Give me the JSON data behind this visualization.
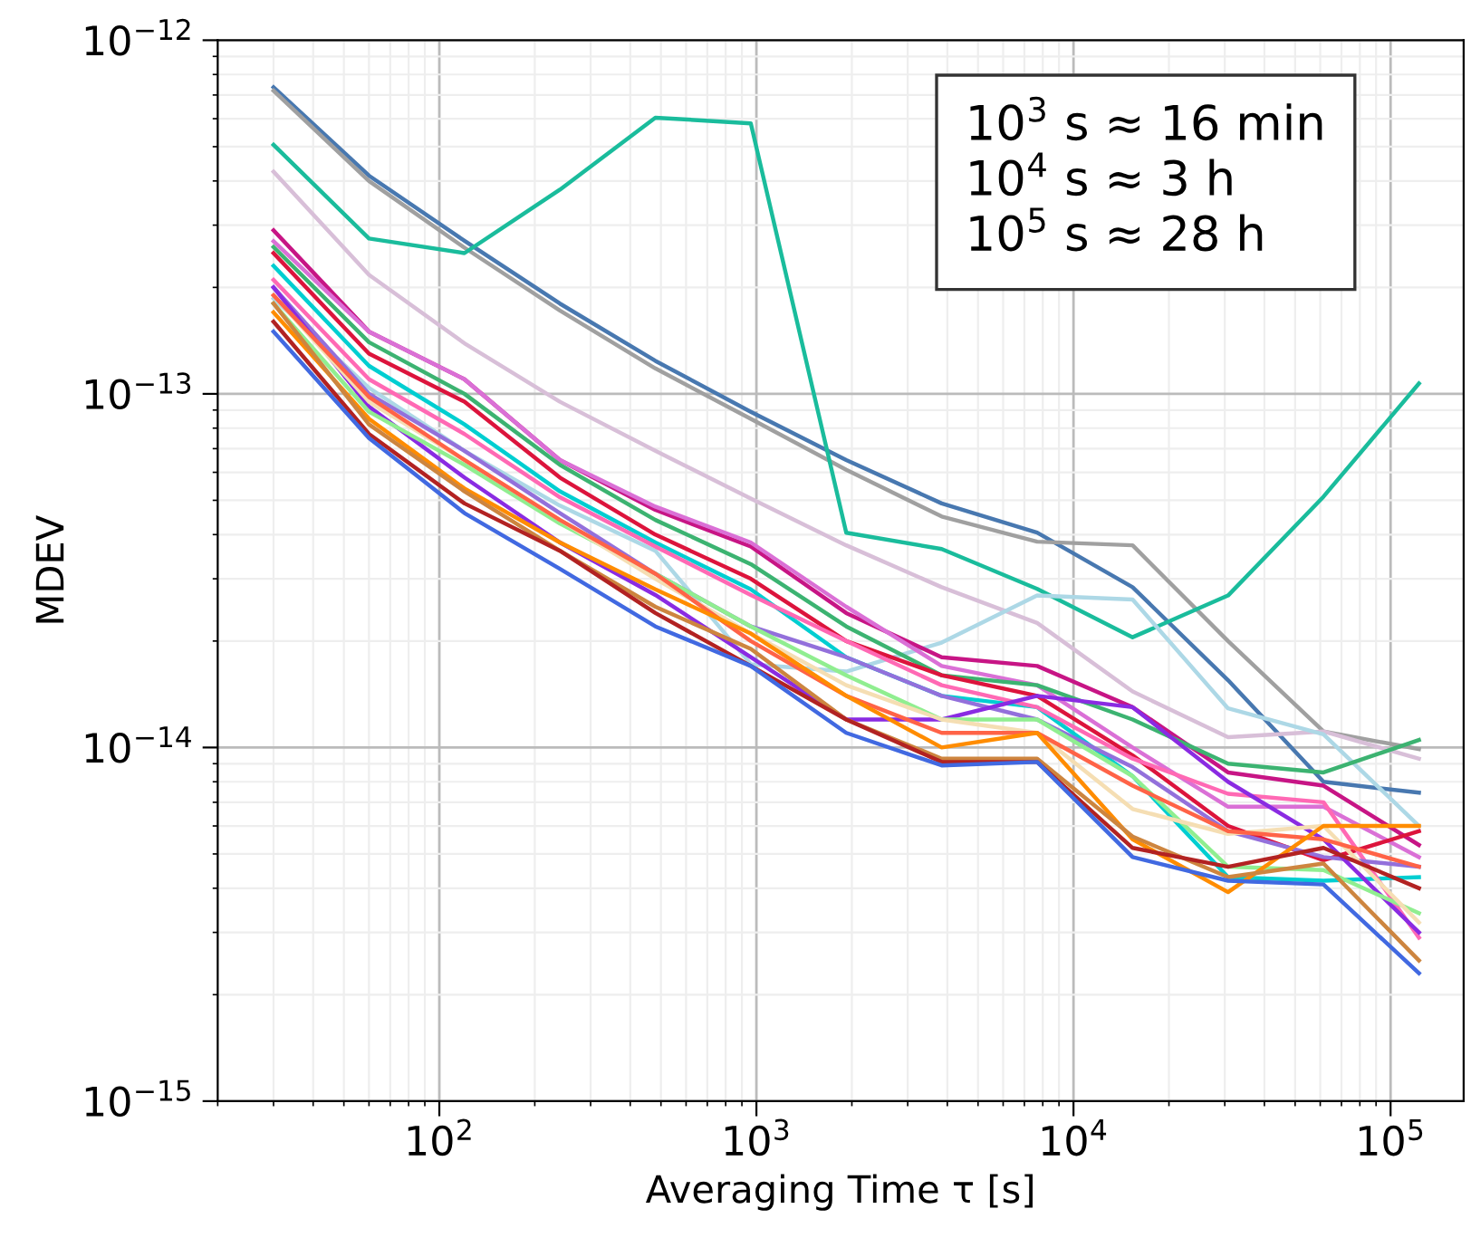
{
  "chart_data": {
    "type": "line",
    "xlabel": "Averaging Time τ [s]",
    "ylabel": "MDEV",
    "log": "xy",
    "grid": true,
    "xlim": [
      20,
      170000
    ],
    "ylim": [
      1e-15,
      1e-12
    ],
    "xticks": [
      {
        "value": 100,
        "label": "10$^{2}$"
      },
      {
        "value": 1000,
        "label": "10$^{3}$"
      },
      {
        "value": 10000,
        "label": "10$^{4}$"
      },
      {
        "value": 100000,
        "label": "10$^{5}$"
      }
    ],
    "yticks": [
      {
        "value": 1e-15,
        "label": "10$^{−15}$"
      },
      {
        "value": 1e-14,
        "label": "10$^{−14}$"
      },
      {
        "value": 1e-13,
        "label": "10$^{−13}$"
      },
      {
        "value": 1e-12,
        "label": "10$^{−12}$"
      }
    ],
    "annotations": [
      "10$^{3}$ s ≈ 16 min",
      "10$^{4}$ s ≈ 3 h",
      "10$^{5}$ s ≈ 28 h"
    ],
    "x": [
      30,
      60,
      120,
      240,
      480,
      960,
      1920,
      3840,
      7680,
      15360,
      30720,
      61440,
      122880
    ],
    "series": [
      {
        "color": "#4878b0",
        "values": [
          7.36e-13,
          4.14e-13,
          2.71e-13,
          1.8e-13,
          1.24e-13,
          8.9e-14,
          6.5e-14,
          4.9e-14,
          4.05e-14,
          2.84e-14,
          1.55e-14,
          8e-15,
          7.45e-15
        ]
      },
      {
        "color": "#a0a0a0",
        "values": [
          7.2e-13,
          4e-13,
          2.59e-13,
          1.72e-13,
          1.18e-13,
          8.5e-14,
          6.1e-14,
          4.5e-14,
          3.82e-14,
          3.73e-14,
          2e-14,
          1.11e-14,
          9.9e-15
        ]
      },
      {
        "color": "#1abc9c",
        "values": [
          5.06e-13,
          2.75e-13,
          2.5e-13,
          3.78e-13,
          6.04e-13,
          5.82e-13,
          4.05e-14,
          3.64e-14,
          2.81e-14,
          2.05e-14,
          2.69e-14,
          5.12e-14,
          1.07e-13
        ]
      },
      {
        "color": "#d8bfd8",
        "values": [
          4.25e-13,
          2.17e-13,
          1.39e-13,
          9.5e-14,
          6.9e-14,
          5.06e-14,
          3.73e-14,
          2.84e-14,
          2.25e-14,
          1.44e-14,
          1.07e-14,
          1.11e-14,
          9.3e-15
        ]
      },
      {
        "color": "#add8e6",
        "values": [
          1.86e-13,
          1.04e-13,
          6.9e-14,
          4.83e-14,
          3.6e-14,
          1.72e-14,
          1.64e-14,
          1.98e-14,
          2.69e-14,
          2.62e-14,
          1.29e-14,
          1.09e-14,
          6e-15
        ]
      },
      {
        "color": "#c71585",
        "values": [
          2.9e-13,
          1.5e-13,
          1.1e-13,
          6.5e-14,
          4.7e-14,
          3.7e-14,
          2.4e-14,
          1.8e-14,
          1.7e-14,
          1.3e-14,
          8.5e-15,
          7.8e-15,
          5.3e-15
        ]
      },
      {
        "color": "#da70d6",
        "values": [
          2.7e-13,
          1.5e-13,
          1.1e-13,
          6.5e-14,
          4.8e-14,
          3.8e-14,
          2.5e-14,
          1.7e-14,
          1.5e-14,
          1e-14,
          6.8e-15,
          6.8e-15,
          4.9e-15
        ]
      },
      {
        "color": "#3cb371",
        "values": [
          2.6e-13,
          1.4e-13,
          1e-13,
          6.3e-14,
          4.4e-14,
          3.3e-14,
          2.2e-14,
          1.6e-14,
          1.5e-14,
          1.2e-14,
          9e-15,
          8.5e-15,
          1.05e-14
        ]
      },
      {
        "color": "#dc143c",
        "values": [
          2.5e-13,
          1.3e-13,
          9.5e-14,
          5.8e-14,
          4e-14,
          3e-14,
          2e-14,
          1.6e-14,
          1.4e-14,
          9.5e-15,
          6e-15,
          4.8e-15,
          5.8e-15
        ]
      },
      {
        "color": "#00ced1",
        "values": [
          2.3e-13,
          1.2e-13,
          8.2e-14,
          5.3e-14,
          3.8e-14,
          2.8e-14,
          1.8e-14,
          1.4e-14,
          1.3e-14,
          8.3e-15,
          4.3e-15,
          4.2e-15,
          4.3e-15
        ]
      },
      {
        "color": "#ff69b4",
        "values": [
          2.1e-13,
          1.1e-13,
          7.7e-14,
          5.1e-14,
          3.7e-14,
          2.7e-14,
          2e-14,
          1.5e-14,
          1.3e-14,
          9.3e-15,
          7.4e-15,
          7e-15,
          2.9e-15
        ]
      },
      {
        "color": "#9370db",
        "values": [
          2e-13,
          1e-13,
          6.9e-14,
          4.6e-14,
          3.1e-14,
          2.2e-14,
          1.8e-14,
          1.4e-14,
          1.2e-14,
          8.8e-15,
          5.8e-15,
          4.9e-15,
          4.6e-15
        ]
      },
      {
        "color": "#8a2be2",
        "values": [
          2e-13,
          9.2e-14,
          5.8e-14,
          3.8e-14,
          2.7e-14,
          1.8e-14,
          1.2e-14,
          1.2e-14,
          1.4e-14,
          1.3e-14,
          8e-15,
          5.5e-15,
          3e-15
        ]
      },
      {
        "color": "#90ee90",
        "values": [
          1.8e-13,
          8.9e-14,
          6.3e-14,
          4.3e-14,
          3.1e-14,
          2.2e-14,
          1.6e-14,
          1.2e-14,
          1.2e-14,
          8.3e-15,
          4.6e-15,
          4.5e-15,
          3.4e-15
        ]
      },
      {
        "color": "#f5deb3",
        "values": [
          1.9e-13,
          9.5e-14,
          6.5e-14,
          4.4e-14,
          3e-14,
          2.1e-14,
          1.5e-14,
          1.2e-14,
          1.1e-14,
          6.7e-15,
          5.7e-15,
          6e-15,
          3.2e-15
        ]
      },
      {
        "color": "#ff6347",
        "values": [
          1.9e-13,
          9.8e-14,
          6.5e-14,
          4.4e-14,
          3.1e-14,
          2e-14,
          1.4e-14,
          1.1e-14,
          1.1e-14,
          7.8e-15,
          5.8e-15,
          5.5e-15,
          4.6e-15
        ]
      },
      {
        "color": "#ff8c00",
        "values": [
          1.7e-13,
          8.5e-14,
          5.4e-14,
          3.8e-14,
          2.8e-14,
          2.1e-14,
          1.4e-14,
          1e-14,
          1.1e-14,
          5.5e-15,
          3.9e-15,
          6e-15,
          6e-15
        ]
      },
      {
        "color": "#cd853f",
        "values": [
          1.8e-13,
          8.2e-14,
          5.3e-14,
          3.6e-14,
          2.5e-14,
          1.9e-14,
          1.2e-14,
          9.3e-15,
          9.3e-15,
          5.6e-15,
          4.3e-15,
          4.7e-15,
          2.5e-15
        ]
      },
      {
        "color": "#b22222",
        "values": [
          1.6e-13,
          7.7e-14,
          4.9e-14,
          3.6e-14,
          2.4e-14,
          1.7e-14,
          1.2e-14,
          9.1e-15,
          9.1e-15,
          5.2e-15,
          4.6e-15,
          5.2e-15,
          4e-15
        ]
      },
      {
        "color": "#4169e1",
        "values": [
          1.5e-13,
          7.5e-14,
          4.6e-14,
          3.2e-14,
          2.2e-14,
          1.7e-14,
          1.1e-14,
          8.9e-15,
          9.1e-15,
          4.9e-15,
          4.2e-15,
          4.1e-15,
          2.3e-15
        ]
      }
    ]
  }
}
